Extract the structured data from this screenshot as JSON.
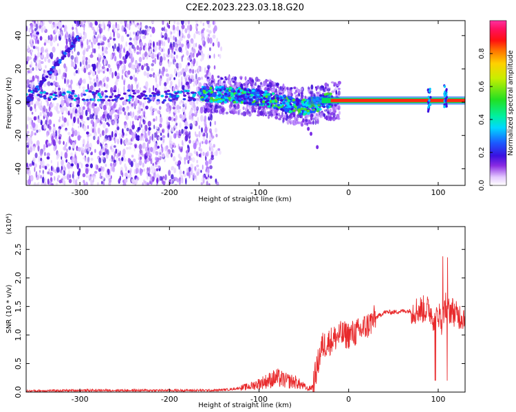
{
  "title": "C2E2.2023.223.03.18.G20",
  "chart_data": [
    {
      "type": "heatmap",
      "xlabel": "Height of straight line (km)",
      "ylabel": "Frequency (Hz)",
      "xlim": [
        -360,
        130
      ],
      "ylim": [
        -50,
        49
      ],
      "xticks": [
        -300,
        -200,
        -100,
        0,
        100
      ],
      "yticks": [
        -40,
        -20,
        0,
        20,
        40
      ],
      "colorbar": {
        "label": "Normalized spectral amplitude",
        "range": [
          0,
          1
        ],
        "ticks": [
          "0.0",
          "0.2",
          "0.4",
          "0.6",
          "0.8"
        ]
      },
      "features": {
        "noise_region_x": [
          -360,
          -140
        ],
        "diagonal_streak": {
          "x": [
            -360,
            -300
          ],
          "y": [
            0,
            40
          ]
        },
        "main_band": [
          {
            "x": -160,
            "y": 5
          },
          {
            "x": -120,
            "y": 4
          },
          {
            "x": -90,
            "y": 2
          },
          {
            "x": -70,
            "y": -1
          },
          {
            "x": -50,
            "y": -3
          },
          {
            "x": -35,
            "y": -1
          },
          {
            "x": -20,
            "y": 1
          },
          {
            "x": 0,
            "y": 1
          },
          {
            "x": 130,
            "y": 1
          }
        ]
      }
    },
    {
      "type": "line",
      "xlabel": "Height of straight line (km)",
      "ylabel": "SNR (10 * v/v)",
      "y_multiplier": "(x10⁴)",
      "xlim": [
        -360,
        130
      ],
      "ylim": [
        0,
        2.9
      ],
      "xticks": [
        -300,
        -200,
        -100,
        0,
        100
      ],
      "yticks": [
        "0.0",
        "0.5",
        "1.0",
        "1.5",
        "2.0",
        "2.5"
      ],
      "series": [
        {
          "color": "#e8292b",
          "x": [
            -360,
            -300,
            -250,
            -200,
            -150,
            -130,
            -110,
            -100,
            -90,
            -80,
            -70,
            -60,
            -50,
            -45,
            -40,
            -35,
            -30,
            -20,
            -10,
            0,
            10,
            20,
            30,
            40,
            50,
            60,
            70,
            80,
            90,
            95,
            100,
            105,
            108,
            110,
            115,
            120,
            130
          ],
          "values": [
            0.02,
            0.03,
            0.03,
            0.03,
            0.03,
            0.05,
            0.1,
            0.15,
            0.2,
            0.25,
            0.2,
            0.18,
            0.1,
            0.05,
            0.1,
            0.45,
            0.8,
            0.9,
            1.0,
            1.0,
            1.05,
            1.15,
            1.3,
            1.4,
            1.4,
            1.42,
            1.42,
            1.45,
            1.45,
            1.3,
            1.4,
            1.2,
            1.55,
            1.4,
            1.45,
            1.35,
            1.32
          ]
        }
      ]
    }
  ]
}
